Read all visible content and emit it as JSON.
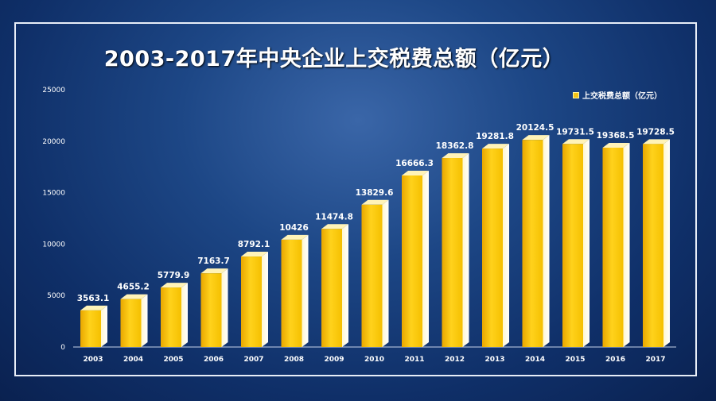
{
  "chart_data": {
    "type": "bar",
    "title": "2003-2017年中央企业上交税费总额（亿元）",
    "categories": [
      "2003",
      "2004",
      "2005",
      "2006",
      "2007",
      "2008",
      "2009",
      "2010",
      "2011",
      "2012",
      "2013",
      "2014",
      "2015",
      "2016",
      "2017"
    ],
    "series": [
      {
        "name": "上交税费总额（亿元）",
        "values": [
          3563.1,
          4655.2,
          5779.9,
          7163.7,
          8792.1,
          10426,
          11474.8,
          13829.6,
          16666.3,
          18362.8,
          19281.8,
          20124.5,
          19731.5,
          19368.5,
          19728.5
        ],
        "labels": [
          "3563.1",
          "4655.2",
          "5779.9",
          "7163.7",
          "8792.1",
          "10426",
          "11474.8",
          "13829.6",
          "16666.3",
          "18362.8",
          "19281.8",
          "20124.5",
          "19731.5",
          "19368.5",
          "19728.5"
        ]
      }
    ],
    "yticks": [
      "0",
      "5000",
      "10000",
      "15000",
      "20000",
      "25000"
    ],
    "ylim": [
      0,
      25000
    ],
    "grid": false,
    "legend_position": "top-right",
    "colors": {
      "bar": "#f3c417",
      "background": "#1d4786",
      "text": "#ffffff"
    }
  }
}
